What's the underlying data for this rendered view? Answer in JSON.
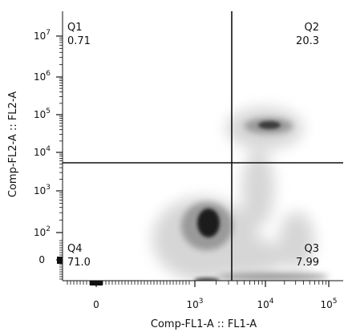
{
  "chart_data": {
    "type": "heatmap",
    "subtype": "flow-cytometry-density-plot",
    "xlabel": "Comp-FL1-A :: FL1-A",
    "ylabel": "Comp-FL2-A :: FL2-A",
    "x_scale": "biexponential",
    "y_scale": "biexponential",
    "x_ticks": [
      {
        "base": "0",
        "exp": ""
      },
      {
        "base": "10",
        "exp": "3"
      },
      {
        "base": "10",
        "exp": "4"
      },
      {
        "base": "10",
        "exp": "5"
      }
    ],
    "y_ticks": [
      {
        "base": "0",
        "exp": ""
      },
      {
        "base": "10",
        "exp": "2"
      },
      {
        "base": "10",
        "exp": "3"
      },
      {
        "base": "10",
        "exp": "4"
      },
      {
        "base": "10",
        "exp": "5"
      },
      {
        "base": "10",
        "exp": "6"
      },
      {
        "base": "10",
        "exp": "7"
      }
    ],
    "gate": {
      "x": 3500,
      "y": 5000
    },
    "quadrants": [
      {
        "name": "Q1",
        "value": "0.71",
        "position": "top-left"
      },
      {
        "name": "Q2",
        "value": "20.3",
        "position": "top-right"
      },
      {
        "name": "Q3",
        "value": "7.99",
        "position": "bottom-right"
      },
      {
        "name": "Q4",
        "value": "71.0",
        "position": "bottom-left"
      }
    ],
    "populations": [
      {
        "x": 1500,
        "y": 150,
        "weight": 1.0
      },
      {
        "x": 10000,
        "y": 50000,
        "weight": 0.7
      }
    ],
    "grid": false,
    "legend": "none"
  }
}
